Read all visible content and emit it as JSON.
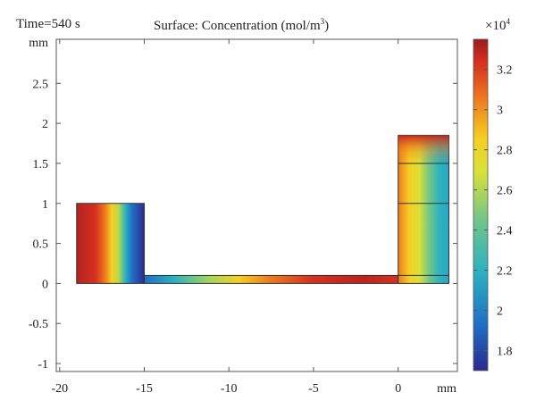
{
  "header": {
    "time_label": "Time=540 s",
    "title_prefix": "Surface: Concentration (mol/m",
    "title_sup": "3",
    "title_suffix": ")"
  },
  "chart_data": {
    "type": "heatmap",
    "title": "Surface: Concentration (mol/m³)",
    "subtitle": "Time=540 s",
    "x_unit": "mm",
    "y_unit": "mm",
    "xlim": [
      -20.2,
      3.5
    ],
    "ylim": [
      -1.1,
      3.05
    ],
    "x_ticks": [
      -20,
      -15,
      -10,
      -5,
      0
    ],
    "x_tick_labels": [
      "-20",
      "-15",
      "-10",
      "-5",
      "0"
    ],
    "y_ticks": [
      -1,
      -0.5,
      0,
      0.5,
      1,
      1.5,
      2,
      2.5
    ],
    "y_tick_labels": [
      "-1",
      "-0.5",
      "0",
      "0.5",
      "1",
      "1.5",
      "2",
      "2.5"
    ],
    "colorbar": {
      "multiplier": "×10",
      "exponent": "4",
      "range": [
        1.7,
        3.35
      ],
      "ticks": [
        1.8,
        2,
        2.2,
        2.4,
        2.6,
        2.8,
        3,
        3.2
      ],
      "tick_labels": [
        "1.8",
        "2",
        "2.2",
        "2.4",
        "2.6",
        "2.8",
        "3",
        "3.2"
      ],
      "colormap": [
        "#2b2a8f",
        "#1f6fc6",
        "#2bb3c0",
        "#6fc48a",
        "#d9e03a",
        "#f6cf22",
        "#ee7a1f",
        "#d7301f",
        "#9b1b1b"
      ]
    },
    "geometry_mm": {
      "left_block": {
        "x": [
          -19,
          -15
        ],
        "y": [
          0,
          1
        ]
      },
      "channel": {
        "x": [
          -15,
          0
        ],
        "y": [
          0,
          0.1
        ]
      },
      "right_column": {
        "x": [
          0,
          3
        ],
        "y": [
          0,
          1.85
        ]
      },
      "right_column_lines_y": [
        0.1,
        1,
        1.5
      ]
    }
  }
}
